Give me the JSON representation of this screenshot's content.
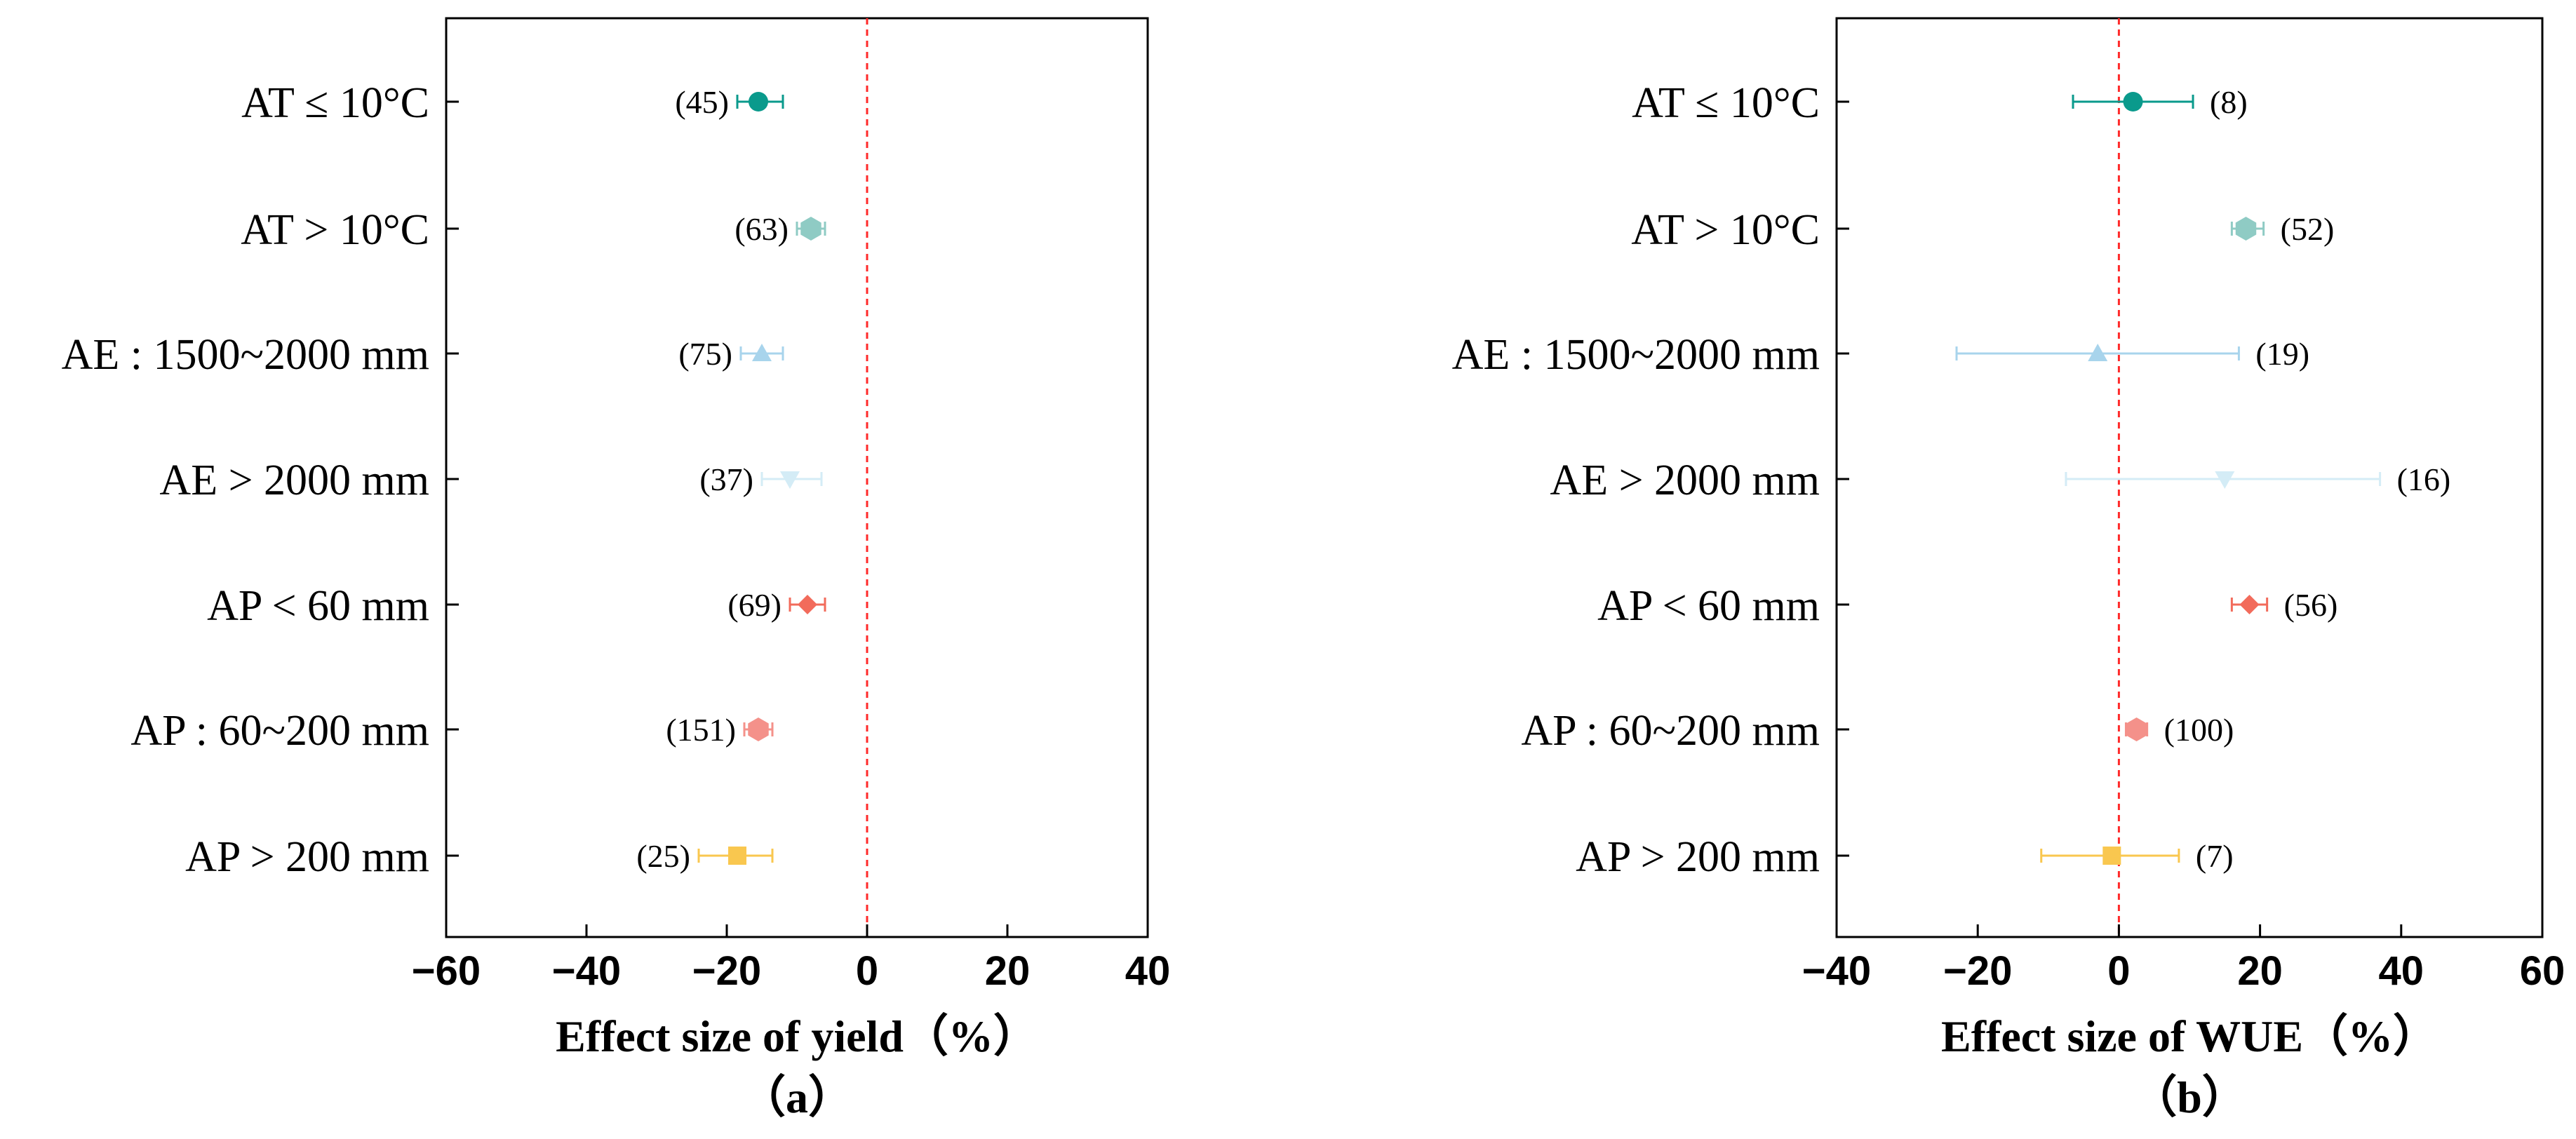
{
  "chart_data": [
    {
      "type": "forest",
      "panel_label": "（a）",
      "xlabel": "Effect size of yield（%）",
      "xlim": [
        -60,
        40
      ],
      "xticks": [
        -60,
        -40,
        -20,
        0,
        20,
        40
      ],
      "tick_labels": [
        "−60",
        "−40",
        "−20",
        "0",
        "20",
        "40"
      ],
      "reference_line": 0,
      "categories": [
        {
          "label": "AT ≤ 10°C",
          "value": -15.5,
          "ci": [
            -18.5,
            -12
          ],
          "n": 45,
          "n_label": "(45)",
          "color": "#0a9a8c",
          "marker": "circle"
        },
        {
          "label": "AT > 10°C",
          "value": -8,
          "ci": [
            -10,
            -6
          ],
          "n": 63,
          "n_label": "(63)",
          "color": "#8fcbc4",
          "marker": "hexagon"
        },
        {
          "label": "AE : 1500~2000 mm",
          "value": -15,
          "ci": [
            -18,
            -12
          ],
          "n": 75,
          "n_label": "(75)",
          "color": "#a8d4ec",
          "marker": "triangle-up"
        },
        {
          "label": "AE > 2000 mm",
          "value": -11,
          "ci": [
            -15,
            -6.5
          ],
          "n": 37,
          "n_label": "(37)",
          "color": "#d4ecf6",
          "marker": "triangle-down"
        },
        {
          "label": "AP < 60 mm",
          "value": -8.5,
          "ci": [
            -11,
            -6
          ],
          "n": 69,
          "n_label": "(69)",
          "color": "#f26b5b",
          "marker": "diamond"
        },
        {
          "label": "AP : 60~200 mm",
          "value": -15.5,
          "ci": [
            -17.5,
            -13.5
          ],
          "n": 151,
          "n_label": "(151)",
          "color": "#f4918a",
          "marker": "hexagon"
        },
        {
          "label": "AP > 200 mm",
          "value": -18.5,
          "ci": [
            -24,
            -13.5
          ],
          "n": 25,
          "n_label": "(25)",
          "color": "#f9c74f",
          "marker": "square"
        }
      ]
    },
    {
      "type": "forest",
      "panel_label": "（b）",
      "xlabel": "Effect size of WUE（%）",
      "xlim": [
        -40,
        60
      ],
      "xticks": [
        -40,
        -20,
        0,
        20,
        40,
        60
      ],
      "tick_labels": [
        "−40",
        "−20",
        "0",
        "20",
        "40",
        "60"
      ],
      "reference_line": 0,
      "categories": [
        {
          "label": "AT ≤ 10°C",
          "value": 2,
          "ci": [
            -6.5,
            10.5
          ],
          "n": 8,
          "n_label": "(8)",
          "color": "#0a9a8c",
          "marker": "circle"
        },
        {
          "label": "AT > 10°C",
          "value": 18,
          "ci": [
            16,
            20.5
          ],
          "n": 52,
          "n_label": "(52)",
          "color": "#8fcbc4",
          "marker": "hexagon"
        },
        {
          "label": "AE : 1500~2000 mm",
          "value": -3,
          "ci": [
            -23,
            17
          ],
          "n": 19,
          "n_label": "(19)",
          "color": "#a8d4ec",
          "marker": "triangle-up"
        },
        {
          "label": "AE > 2000 mm",
          "value": 15,
          "ci": [
            -7.5,
            37
          ],
          "n": 16,
          "n_label": "(16)",
          "color": "#d4ecf6",
          "marker": "triangle-down"
        },
        {
          "label": "AP < 60 mm",
          "value": 18.5,
          "ci": [
            16,
            21
          ],
          "n": 56,
          "n_label": "(56)",
          "color": "#f26b5b",
          "marker": "diamond"
        },
        {
          "label": "AP : 60~200 mm",
          "value": 2.5,
          "ci": [
            1,
            4
          ],
          "n": 100,
          "n_label": "(100)",
          "color": "#f4918a",
          "marker": "hexagon"
        },
        {
          "label": "AP > 200 mm",
          "value": -1,
          "ci": [
            -11,
            8.5
          ],
          "n": 7,
          "n_label": "(7)",
          "color": "#f9c74f",
          "marker": "square"
        }
      ]
    }
  ]
}
